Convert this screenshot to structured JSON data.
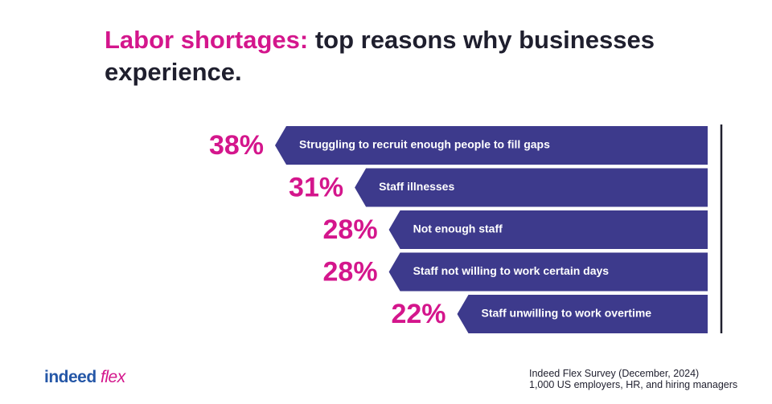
{
  "chart_data": {
    "type": "bar",
    "title_highlight": "Labor shortages:",
    "title": "top reasons why businesses experience.",
    "categories": [
      "Struggling to recruit enough people to fill gaps",
      "Staff illnesses",
      "Not  enough staff",
      "Staff not willing to work certain days",
      "Staff unwilling to work overtime"
    ],
    "values": [
      38,
      31,
      28,
      28,
      22
    ],
    "value_labels": [
      "38%",
      "31%",
      "28%",
      "28%",
      "22%"
    ],
    "color": "#3d3a8c",
    "label_color": "#d4168c",
    "source": [
      "Indeed Flex Survey (December, 2024)",
      "1,000 US  employers, HR, and hiring managers"
    ]
  },
  "logo": {
    "brand": "indeed",
    "product": "flex"
  }
}
